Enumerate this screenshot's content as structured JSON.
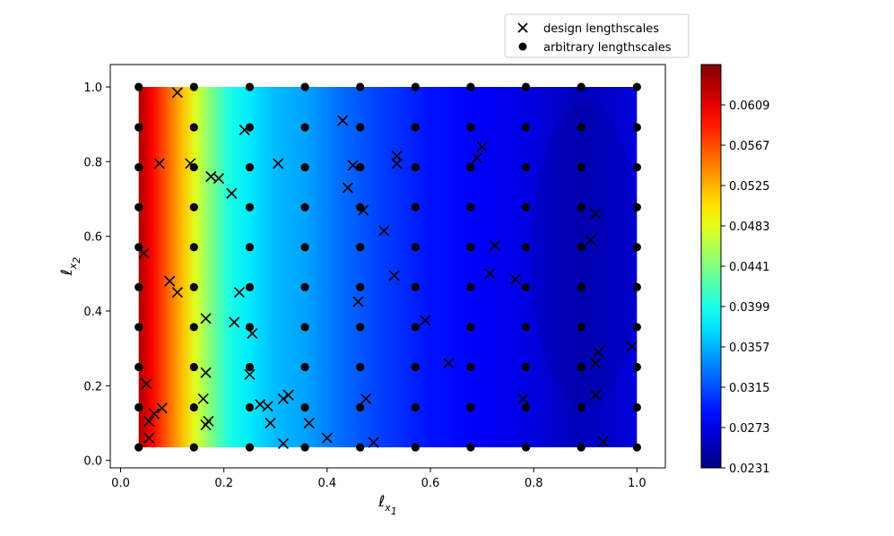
{
  "chart_data": {
    "type": "scatter",
    "subtype": "contour-heatmap-with-scatter-overlay",
    "title": "",
    "xlabel": {
      "symbol": "ℓ",
      "subscript": "x",
      "subsubscript": "1"
    },
    "ylabel": {
      "symbol": "ℓ",
      "subscript": "x",
      "subsubscript": "2"
    },
    "xlim": [
      -0.02,
      1.055
    ],
    "ylim": [
      -0.02,
      1.06
    ],
    "xticks": [
      "0.0",
      "0.2",
      "0.4",
      "0.6",
      "0.8",
      "1.0"
    ],
    "yticks": [
      "0.0",
      "0.2",
      "0.4",
      "0.6",
      "0.8",
      "1.0"
    ],
    "grid": false,
    "legend": {
      "placement": "above-top-right",
      "entries": [
        {
          "label": "design lengthscales",
          "marker": "x"
        },
        {
          "label": "arbitrary lengthscales",
          "marker": "o"
        }
      ]
    },
    "colorbar": {
      "colormap": "jet",
      "min": 0.0231,
      "max": 0.0651,
      "ticks": [
        "0.0231",
        "0.0273",
        "0.0315",
        "0.0357",
        "0.0399",
        "0.0441",
        "0.0483",
        "0.0525",
        "0.0567",
        "0.0609"
      ]
    },
    "heatmap_extent": {
      "x": [
        0.035,
        1.0
      ],
      "y": [
        0.035,
        1.0
      ]
    },
    "heatmap_profile_x": [
      [
        0.035,
        0.0635
      ],
      [
        0.06,
        0.06
      ],
      [
        0.09,
        0.056
      ],
      [
        0.12,
        0.052
      ],
      [
        0.145,
        0.048
      ],
      [
        0.175,
        0.044
      ],
      [
        0.21,
        0.04
      ],
      [
        0.25,
        0.038
      ],
      [
        0.3,
        0.036
      ],
      [
        0.36,
        0.035
      ],
      [
        0.42,
        0.033
      ],
      [
        0.5,
        0.031
      ],
      [
        0.6,
        0.029
      ],
      [
        0.7,
        0.028
      ],
      [
        0.8,
        0.027
      ],
      [
        0.88,
        0.0255
      ],
      [
        0.94,
        0.026
      ],
      [
        1.0,
        0.027
      ]
    ],
    "series": [
      {
        "name": "design lengthscales",
        "marker": "x",
        "points": [
          [
            0.11,
            0.985
          ],
          [
            0.43,
            0.91
          ],
          [
            0.24,
            0.885
          ],
          [
            0.075,
            0.795
          ],
          [
            0.135,
            0.795
          ],
          [
            0.305,
            0.795
          ],
          [
            0.175,
            0.76
          ],
          [
            0.19,
            0.755
          ],
          [
            0.215,
            0.715
          ],
          [
            0.45,
            0.79
          ],
          [
            0.535,
            0.815
          ],
          [
            0.535,
            0.795
          ],
          [
            0.7,
            0.84
          ],
          [
            0.69,
            0.81
          ],
          [
            0.44,
            0.73
          ],
          [
            0.47,
            0.67
          ],
          [
            0.51,
            0.615
          ],
          [
            0.92,
            0.66
          ],
          [
            0.91,
            0.59
          ],
          [
            0.725,
            0.575
          ],
          [
            0.045,
            0.555
          ],
          [
            0.095,
            0.48
          ],
          [
            0.11,
            0.45
          ],
          [
            0.23,
            0.45
          ],
          [
            0.53,
            0.495
          ],
          [
            0.715,
            0.5
          ],
          [
            0.765,
            0.485
          ],
          [
            0.46,
            0.425
          ],
          [
            0.165,
            0.38
          ],
          [
            0.22,
            0.37
          ],
          [
            0.255,
            0.34
          ],
          [
            0.59,
            0.375
          ],
          [
            0.99,
            0.305
          ],
          [
            0.925,
            0.29
          ],
          [
            0.92,
            0.26
          ],
          [
            0.165,
            0.235
          ],
          [
            0.25,
            0.23
          ],
          [
            0.635,
            0.26
          ],
          [
            0.05,
            0.205
          ],
          [
            0.16,
            0.165
          ],
          [
            0.78,
            0.165
          ],
          [
            0.475,
            0.165
          ],
          [
            0.92,
            0.175
          ],
          [
            0.325,
            0.175
          ],
          [
            0.315,
            0.165
          ],
          [
            0.08,
            0.14
          ],
          [
            0.065,
            0.125
          ],
          [
            0.27,
            0.15
          ],
          [
            0.285,
            0.145
          ],
          [
            0.055,
            0.105
          ],
          [
            0.17,
            0.105
          ],
          [
            0.165,
            0.095
          ],
          [
            0.29,
            0.1
          ],
          [
            0.365,
            0.1
          ],
          [
            0.055,
            0.06
          ],
          [
            0.4,
            0.06
          ],
          [
            0.315,
            0.045
          ],
          [
            0.49,
            0.048
          ],
          [
            0.935,
            0.05
          ]
        ]
      },
      {
        "name": "arbitrary lengthscales",
        "marker": "o",
        "grid_x": [
          0.035,
          0.142,
          0.25,
          0.357,
          0.464,
          0.571,
          0.678,
          0.785,
          0.892,
          1.0
        ],
        "grid_y": [
          0.035,
          0.142,
          0.25,
          0.357,
          0.464,
          0.571,
          0.678,
          0.785,
          0.892,
          1.0
        ]
      }
    ]
  }
}
